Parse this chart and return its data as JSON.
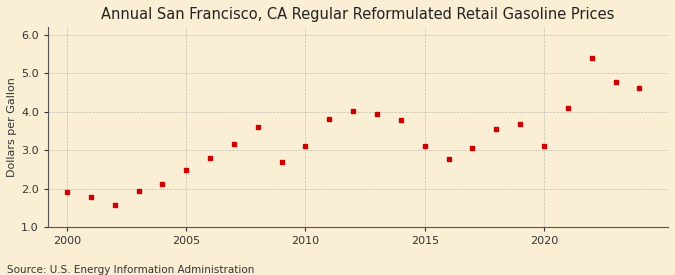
{
  "title": "Annual San Francisco, CA Regular Reformulated Retail Gasoline Prices",
  "ylabel": "Dollars per Gallon",
  "source": "Source: U.S. Energy Information Administration",
  "years": [
    2000,
    2001,
    2002,
    2003,
    2004,
    2005,
    2006,
    2007,
    2008,
    2009,
    2010,
    2011,
    2012,
    2013,
    2014,
    2015,
    2016,
    2017,
    2018,
    2019,
    2020,
    2021,
    2022,
    2023,
    2024
  ],
  "prices": [
    1.9,
    1.77,
    1.57,
    1.93,
    2.13,
    2.49,
    2.8,
    3.16,
    3.6,
    2.68,
    3.1,
    3.82,
    4.03,
    3.93,
    3.79,
    3.12,
    2.76,
    3.06,
    3.54,
    3.67,
    3.12,
    4.1,
    5.4,
    4.77,
    4.63
  ],
  "marker_color": "#cc0000",
  "marker": "s",
  "markersize": 3.5,
  "ylim": [
    1.0,
    6.2
  ],
  "yticks": [
    1.0,
    2.0,
    3.0,
    4.0,
    5.0,
    6.0
  ],
  "xticks": [
    2000,
    2005,
    2010,
    2015,
    2020
  ],
  "xlim": [
    1999.2,
    2025.2
  ],
  "background_color": "#faefd4",
  "grid_color": "#aaaaaa",
  "title_fontsize": 10.5,
  "label_fontsize": 8,
  "tick_fontsize": 8,
  "source_fontsize": 7.5
}
